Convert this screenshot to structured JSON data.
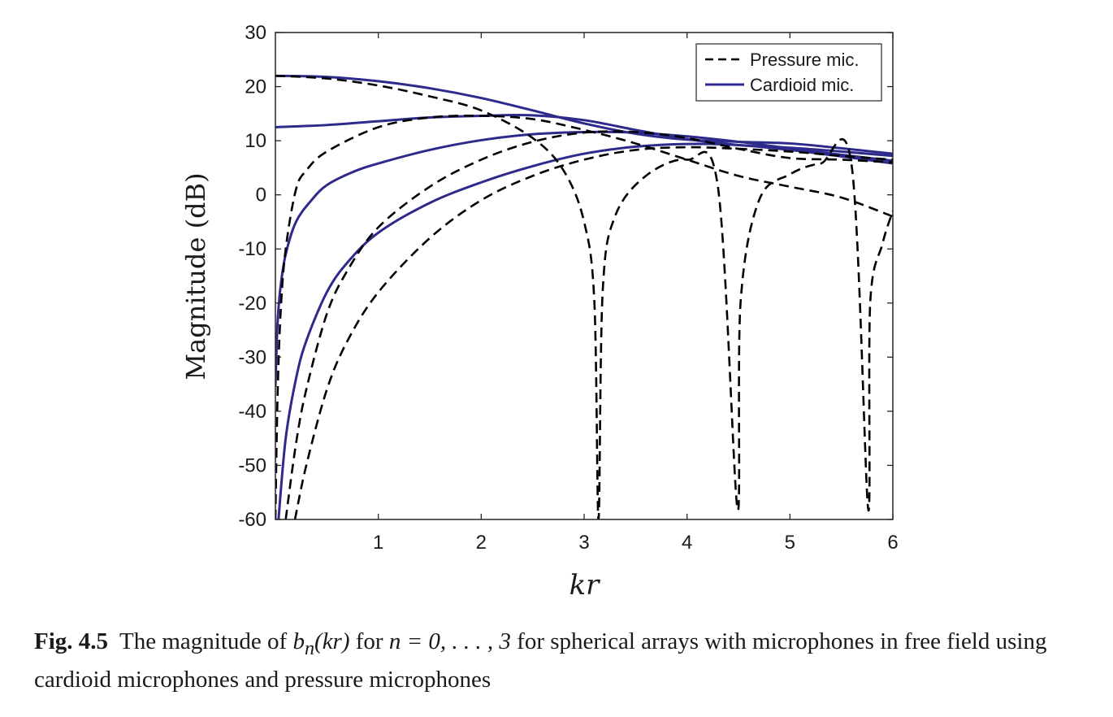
{
  "chart_data": {
    "type": "line",
    "ylabel": "Magnitude (dB)",
    "xlabel": "kr",
    "xlim": [
      0,
      6
    ],
    "ylim": [
      -60,
      30
    ],
    "xticks": [
      1,
      2,
      3,
      4,
      5,
      6
    ],
    "yticks": [
      30,
      20,
      10,
      0,
      -10,
      -20,
      -30,
      -40,
      -50,
      -60
    ],
    "legend": {
      "position": "top-right",
      "entries": [
        {
          "label": "Pressure mic.",
          "color": "#000000",
          "style": "dashed"
        },
        {
          "label": "Cardioid mic.",
          "color": "#2e2a8c",
          "style": "solid"
        }
      ]
    },
    "series": [
      {
        "group": "pressure",
        "color": "#000000",
        "style": "dashed",
        "x": [
          0.0,
          0.5,
          1.0,
          1.5,
          2.0,
          2.5,
          2.8,
          3.0,
          3.1,
          3.14,
          3.18,
          3.3,
          3.6,
          4.0,
          4.3,
          4.49,
          4.52,
          4.7,
          5.0,
          5.3,
          5.6,
          5.76,
          5.78,
          5.9,
          6.0
        ],
        "y": [
          22,
          21.5,
          20.2,
          18.2,
          15.6,
          10.5,
          4.5,
          -5,
          -20,
          -60,
          -18,
          -4,
          3.5,
          6.5,
          1.5,
          -58,
          -20,
          -1,
          3.8,
          5.8,
          5.4,
          -58,
          -20,
          -9,
          -3
        ]
      },
      {
        "group": "pressure",
        "color": "#000000",
        "style": "dashed",
        "x": [
          0.0,
          0.02,
          0.05,
          0.1,
          0.2,
          0.3,
          0.5,
          1.0,
          1.5,
          2.0,
          2.5,
          3.0,
          3.5,
          4.0,
          4.5,
          5.0,
          5.5,
          6.0
        ],
        "y": [
          -60,
          -38,
          -22,
          -10,
          1,
          4.5,
          8,
          12.5,
          14.3,
          14.6,
          14,
          12,
          9.5,
          6.5,
          3.5,
          1.5,
          -0.5,
          -4
        ]
      },
      {
        "group": "pressure",
        "color": "#000000",
        "style": "dashed",
        "x": [
          0.1,
          0.2,
          0.3,
          0.5,
          0.7,
          1.0,
          1.5,
          2.0,
          2.5,
          3.0,
          3.5,
          4.0,
          4.5,
          5.0,
          5.5,
          6.0
        ],
        "y": [
          -60,
          -46,
          -36,
          -22,
          -14,
          -6,
          1.5,
          6.5,
          9.8,
          11.5,
          11.6,
          10.5,
          8.5,
          6.8,
          6.5,
          6
        ]
      },
      {
        "group": "pressure",
        "color": "#000000",
        "style": "dashed",
        "x": [
          0.19,
          0.3,
          0.5,
          0.7,
          1.0,
          1.5,
          2.0,
          2.5,
          3.0,
          3.5,
          4.0,
          4.5,
          5.0,
          5.5,
          6.0
        ],
        "y": [
          -60,
          -50,
          -36,
          -27,
          -18,
          -8,
          -1,
          3.5,
          6.5,
          8.3,
          8.8,
          8.5,
          8,
          7.2,
          6.5
        ]
      },
      {
        "group": "cardioid",
        "color": "#2e2a8c",
        "style": "solid",
        "x": [
          0.0,
          0.5,
          1.0,
          1.5,
          2.0,
          2.5,
          3.0,
          3.5,
          4.0,
          4.5,
          5.0,
          5.5,
          6.0
        ],
        "y": [
          22,
          21.8,
          21,
          19.7,
          17.9,
          15.6,
          13.2,
          11.3,
          10.2,
          9.8,
          9.5,
          8.6,
          7.6
        ]
      },
      {
        "group": "cardioid",
        "color": "#2e2a8c",
        "style": "solid",
        "x": [
          0.0,
          0.5,
          1.0,
          1.5,
          2.0,
          2.5,
          3.0,
          3.5,
          4.0,
          4.5,
          5.0,
          5.5,
          6.0
        ],
        "y": [
          12.5,
          12.9,
          13.6,
          14.3,
          14.6,
          14.7,
          13.8,
          12,
          10.3,
          9.2,
          8.7,
          8,
          7.2
        ]
      },
      {
        "group": "cardioid",
        "color": "#2e2a8c",
        "style": "solid",
        "x": [
          0.0,
          0.02,
          0.05,
          0.1,
          0.2,
          0.35,
          0.5,
          0.75,
          1.0,
          1.5,
          2.0,
          2.5,
          3.0,
          3.5,
          4.0,
          4.5,
          5.0,
          5.5,
          6.0
        ],
        "y": [
          -35.5,
          -24,
          -17,
          -11,
          -5,
          -1,
          1.8,
          4.2,
          5.8,
          8.3,
          10.1,
          11.2,
          11.6,
          11.5,
          10.8,
          9.8,
          8.6,
          7.4,
          6.3
        ]
      },
      {
        "group": "cardioid",
        "color": "#2e2a8c",
        "style": "solid",
        "x": [
          0.03,
          0.1,
          0.2,
          0.3,
          0.5,
          0.7,
          1.0,
          1.5,
          2.0,
          2.5,
          3.0,
          3.5,
          4.0,
          4.5,
          5.0,
          5.5,
          6.0
        ],
        "y": [
          -60,
          -45,
          -34,
          -27,
          -18,
          -12.5,
          -7,
          -1.5,
          2.3,
          5.3,
          7.6,
          8.9,
          9.4,
          9.2,
          8.3,
          7.1,
          5.8
        ]
      }
    ]
  },
  "caption": {
    "fig_label": "Fig. 4.5",
    "text_a": "The magnitude of ",
    "b_symbol": "b",
    "b_sub": "n",
    "arg": "(kr)",
    "text_b": " for ",
    "n_eq": "n = 0, . . . , 3",
    "text_c": " for spherical arrays with microphones in free field using cardioid microphones and pressure microphones"
  }
}
